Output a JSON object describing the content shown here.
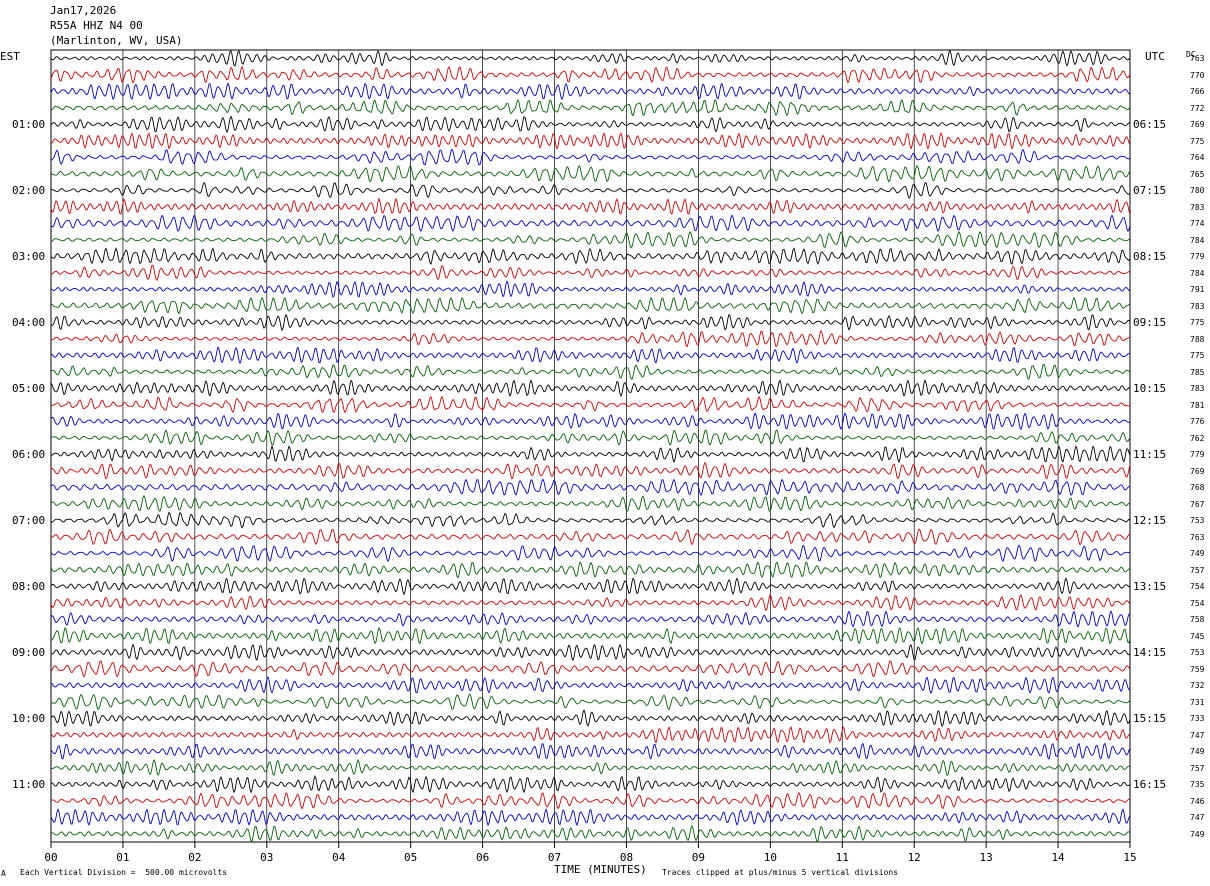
{
  "header": {
    "date": "Jan17,2026",
    "station": "R55A HHZ N4 00",
    "location": "(Marlinton, WV, USA)"
  },
  "left_axis_title": "EST",
  "right_axis_title": "UTC",
  "dc_title": "DC",
  "footer": {
    "scale_note": "Each Vertical Division =  500.00 microvolts",
    "clip_note": "Traces clipped at plus/minus 5 vertical divisions",
    "corner_mark": "A"
  },
  "colors": {
    "trace_cycle": [
      "#000000",
      "#d40000",
      "#0000cc",
      "#006400"
    ],
    "grid": "#000000"
  },
  "chart_data": {
    "type": "line",
    "title": "R55A HHZ N4 00",
    "xlabel": "TIME (MINUTES)",
    "xlim": [
      0,
      15
    ],
    "x_ticks": [
      "00",
      "01",
      "02",
      "03",
      "04",
      "05",
      "06",
      "07",
      "08",
      "09",
      "10",
      "11",
      "12",
      "13",
      "14",
      "15"
    ],
    "row_count": 48,
    "row_minutes": 15,
    "left_time_labels": [
      "01:00",
      "02:00",
      "03:00",
      "04:00",
      "05:00",
      "06:00",
      "07:00",
      "08:00",
      "09:00",
      "10:00",
      "11:00"
    ],
    "right_time_labels": [
      "06:15",
      "07:15",
      "08:15",
      "09:15",
      "10:15",
      "11:15",
      "12:15",
      "13:15",
      "14:15",
      "15:15",
      "16:15"
    ],
    "dc_offsets": [
      "763",
      "770",
      "766",
      "772",
      "769",
      "775",
      "764",
      "765",
      "780",
      "783",
      "774",
      "784",
      "779",
      "784",
      "791",
      "783",
      "775",
      "788",
      "775",
      "785",
      "783",
      "781",
      "776",
      "762",
      "779",
      "769",
      "768",
      "767",
      "753",
      "763",
      "749",
      "757",
      "754",
      "754",
      "758",
      "745",
      "753",
      "759",
      "732",
      "731",
      "733",
      "747",
      "749",
      "757",
      "735",
      "746",
      "747",
      "749"
    ],
    "grid": true
  }
}
